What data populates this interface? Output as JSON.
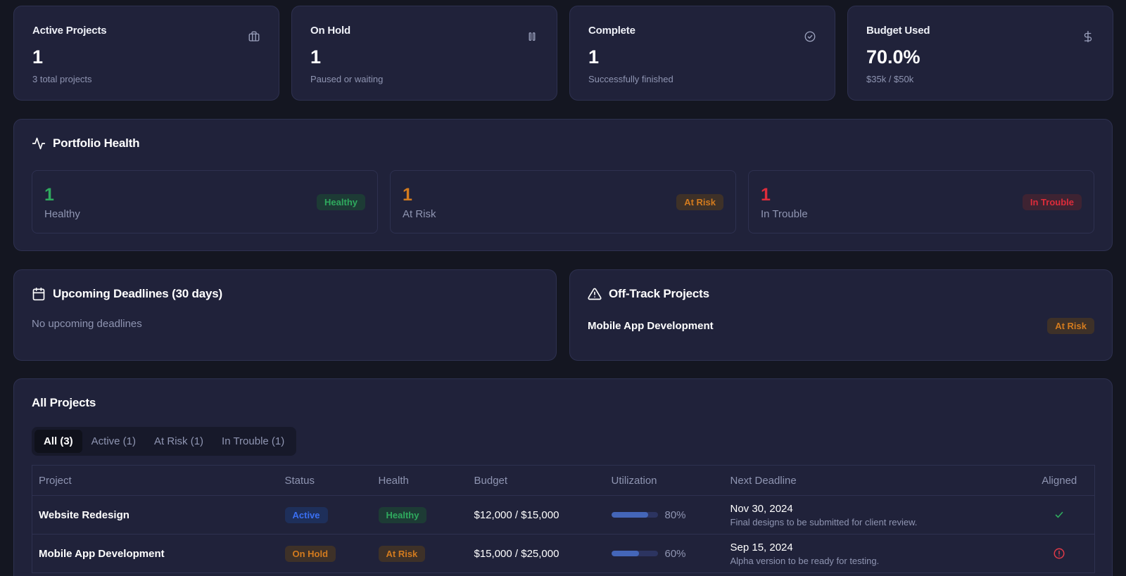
{
  "stats": [
    {
      "title": "Active Projects",
      "value": "1",
      "sub": "3 total projects",
      "icon": "briefcase-icon"
    },
    {
      "title": "On Hold",
      "value": "1",
      "sub": "Paused or waiting",
      "icon": "pause-icon"
    },
    {
      "title": "Complete",
      "value": "1",
      "sub": "Successfully finished",
      "icon": "check-circle-icon"
    },
    {
      "title": "Budget Used",
      "value": "70.0%",
      "sub": "$35k / $50k",
      "icon": "dollar-icon"
    }
  ],
  "health": {
    "title": "Portfolio Health",
    "boxes": [
      {
        "count": "1",
        "label": "Healthy",
        "badge": "Healthy",
        "color": "#2faa5e"
      },
      {
        "count": "1",
        "label": "At Risk",
        "badge": "At Risk",
        "color": "#d37b1e"
      },
      {
        "count": "1",
        "label": "In Trouble",
        "badge": "In Trouble",
        "color": "#dd2c3b"
      }
    ]
  },
  "deadlines": {
    "title": "Upcoming Deadlines (30 days)",
    "empty": "No upcoming deadlines"
  },
  "offtrack": {
    "title": "Off-Track Projects",
    "items": [
      {
        "name": "Mobile App Development",
        "badge": "At Risk"
      }
    ]
  },
  "projects": {
    "title": "All Projects",
    "tabs": [
      "All (3)",
      "Active (1)",
      "At Risk (1)",
      "In Trouble (1)"
    ],
    "active_tab": 0,
    "columns": [
      "Project",
      "Status",
      "Health",
      "Budget",
      "Utilization",
      "Next Deadline",
      "Aligned"
    ],
    "rows": [
      {
        "name": "Website Redesign",
        "status": "Active",
        "health": "Healthy",
        "budget": "$12,000 / $15,000",
        "utilization_pct": 80,
        "utilization": "80%",
        "deadline_date": "Nov 30, 2024",
        "deadline_desc": "Final designs to be submitted for client review.",
        "aligned": "check-icon"
      },
      {
        "name": "Mobile App Development",
        "status": "On Hold",
        "health": "At Risk",
        "budget": "$15,000 / $25,000",
        "utilization_pct": 60,
        "utilization": "60%",
        "deadline_date": "Sep 15, 2024",
        "deadline_desc": "Alpha version to be ready for testing.",
        "aligned": "alert-circle-icon"
      }
    ]
  }
}
